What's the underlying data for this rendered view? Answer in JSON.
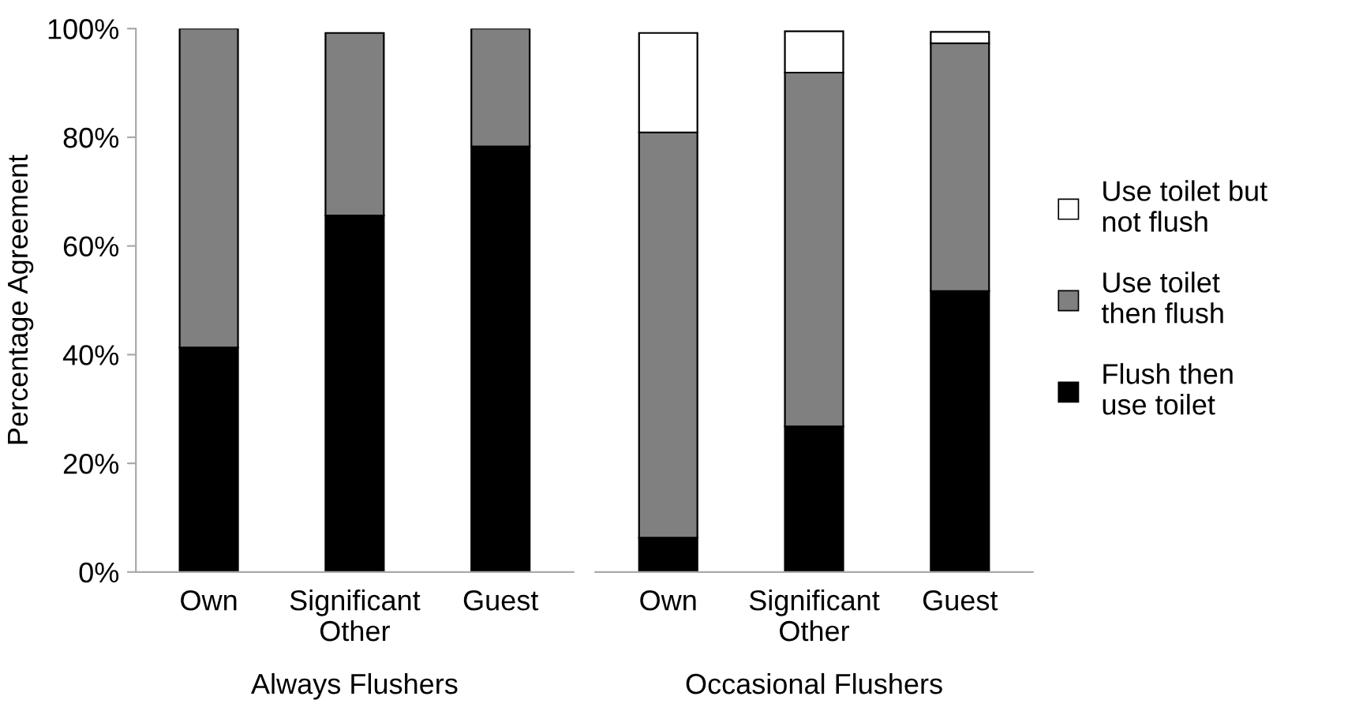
{
  "chart_data": [
    {
      "type": "bar",
      "stacked": true,
      "xlabel": "Always Flushers",
      "ylabel": "Percentage Agreement",
      "categories": [
        "Own",
        "Significant\nOther",
        "Guest"
      ],
      "ylim": [
        0,
        100
      ],
      "yticks": [
        {
          "value": 0,
          "label": "0%"
        },
        {
          "value": 20,
          "label": "20%"
        },
        {
          "value": 40,
          "label": "40%"
        },
        {
          "value": 60,
          "label": "60%"
        },
        {
          "value": 80,
          "label": "80%"
        },
        {
          "value": 100,
          "label": "100%"
        }
      ],
      "grid": false,
      "legend": false,
      "series": [
        {
          "color": "#000000",
          "values": [
            41.3,
            65.6,
            78.3
          ]
        },
        {
          "color": "#808080",
          "values": [
            58.7,
            33.6,
            21.7
          ]
        }
      ]
    },
    {
      "type": "bar",
      "stacked": true,
      "xlabel": "Occasional Flushers",
      "categories": [
        "Own",
        "Significant\nOther",
        "Guest"
      ],
      "ylim": [
        0,
        100
      ],
      "tick_labels": "x",
      "grid": false,
      "legend": "right",
      "series": [
        {
          "name": "Flush then\nuse toilet",
          "color": "#000000",
          "values": [
            6.3,
            26.8,
            51.7
          ]
        },
        {
          "name": "Use toilet\nthen flush",
          "color": "#808080",
          "values": [
            74.6,
            65.1,
            45.6
          ]
        },
        {
          "name": "Use toilet but\nnot flush",
          "color": "#ffffff",
          "values": [
            18.3,
            7.6,
            2.1
          ]
        }
      ]
    }
  ]
}
